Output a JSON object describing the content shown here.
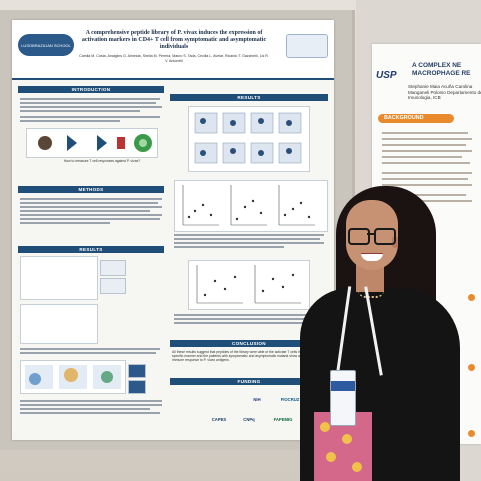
{
  "poster": {
    "logo_left": "LUSOBRAZILIAN SCHOOL",
    "title": "A comprehensive peptide library of P. vivax induces the expression of activation markers in CD4+ T cell from symptomatic and asymptomatic individuals",
    "authors": "Camila M. Costa, Anaiglins G. Almeida, Sheila M. Pereira, Mauro S. Tada, Cecilia L. Avelar, Ricardo T. Gazzinelli, Lis R. V. Antonelli",
    "sections": {
      "introduction": "INTRODUCTION",
      "results": "RESULTS",
      "methods": "METHODS",
      "conclusion": "CONCLUSION",
      "funding": "FUNDING"
    },
    "intro_question": "How to measure T cell responses against P. vivax?",
    "conclusion_text": "All these results suggest that peptides of the library were able of the activate T cells in an antigen-specific manner and the patients with symptomatic and asymptomatic malaria show an adaptative immune response to P. vivax antigens.",
    "funding_logos": [
      "CAPES",
      "CNPq",
      "FAPEMIG",
      "NIH",
      "FIOCRUZ"
    ]
  },
  "poster2": {
    "institution": "USP",
    "title": "A COMPLEX NE MACROPHAGE RE",
    "names": "Stephanie Maia Acuña Carolina Manganeli Polonio Departamento de Imunologia, ICB",
    "background_label": "BACKGROUND"
  },
  "colors": {
    "poster_accent": "#1f4e79",
    "poster2_accent": "#e98a2c"
  }
}
